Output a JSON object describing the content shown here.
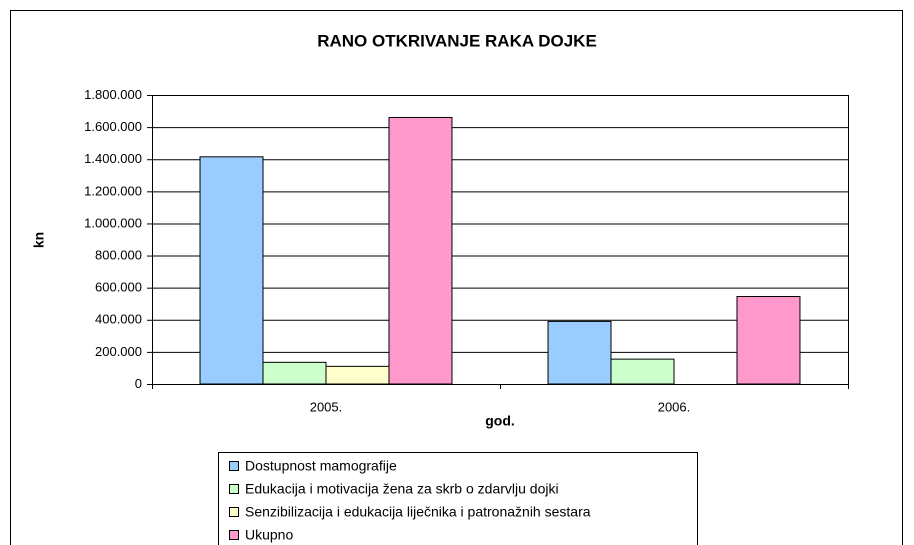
{
  "chart_data": {
    "type": "bar",
    "title": "RANO OTKRIVANJE RAKA DOJKE",
    "x_label": "god.",
    "y_label": "kn",
    "categories": [
      "2005.",
      "2006."
    ],
    "series": [
      {
        "name": "Dostupnost mamografije",
        "color": "#99ccff",
        "values": [
          1415000,
          390000
        ]
      },
      {
        "name": "Edukacija i motivacija žena za skrb o zdarvlju dojki",
        "color": "#ccffcc",
        "values": [
          135000,
          155000
        ]
      },
      {
        "name": "Senzibilizacija i edukacija liječnika i patronažnih sestara",
        "color": "#ffffcc",
        "values": [
          110000,
          null
        ]
      },
      {
        "name": "Ukupno",
        "color": "#ff99cc",
        "values": [
          1660000,
          545000
        ]
      }
    ],
    "ylim": [
      0,
      1800000
    ],
    "yticks": [
      0,
      {
        "value": 200000,
        "label": "200.000"
      },
      {
        "value": 400000,
        "label": "400.000"
      },
      {
        "value": 600000,
        "label": "600.000"
      },
      {
        "value": 800000,
        "label": "800.000"
      },
      {
        "value": 1000000,
        "label": "1.000.000"
      },
      {
        "value": 1200000,
        "label": "1.200.000"
      },
      {
        "value": 1400000,
        "label": "1.400.000"
      },
      {
        "value": 1600000,
        "label": "1.600.000"
      },
      {
        "value": 1800000,
        "label": "1.800.000"
      }
    ],
    "grid": true,
    "legend": "bottom"
  }
}
